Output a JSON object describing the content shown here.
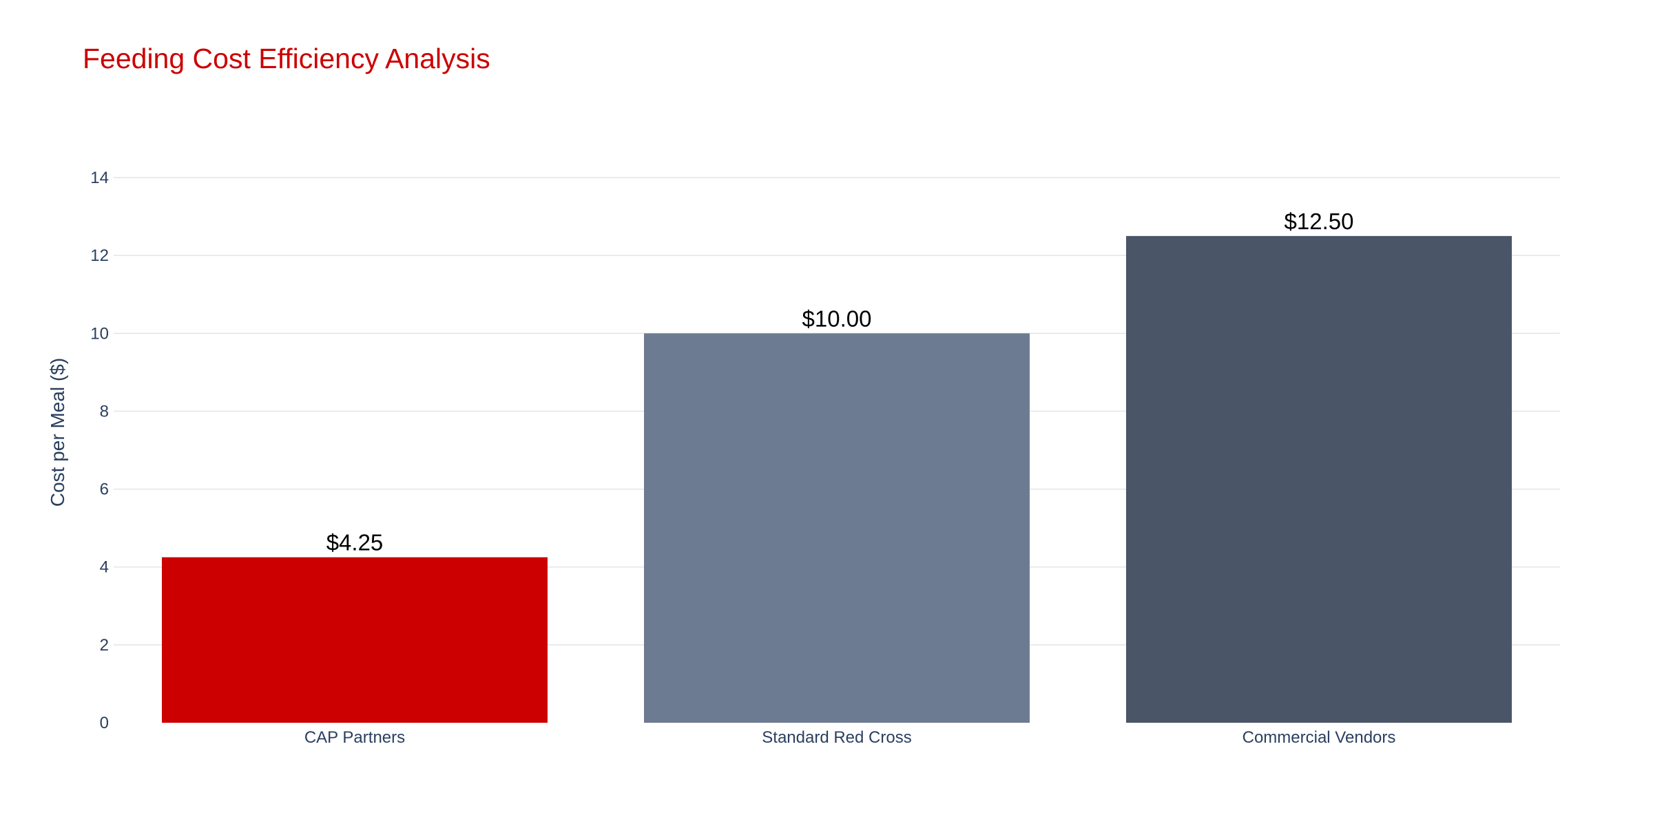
{
  "chart_data": {
    "type": "bar",
    "title": "Feeding Cost Efficiency Analysis",
    "xlabel": "",
    "ylabel": "Cost per Meal ($)",
    "categories": [
      "CAP Partners",
      "Standard Red Cross",
      "Commercial Vendors"
    ],
    "values": [
      4.25,
      10.0,
      12.5
    ],
    "data_labels": [
      "$4.25",
      "$10.00",
      "$12.50"
    ],
    "colors": [
      "#cc0000",
      "#6d7b92",
      "#4a5568"
    ],
    "ylim": [
      0,
      14
    ],
    "yticks": [
      0,
      2,
      4,
      6,
      8,
      10,
      12,
      14
    ],
    "grid": true,
    "legend": "none"
  }
}
